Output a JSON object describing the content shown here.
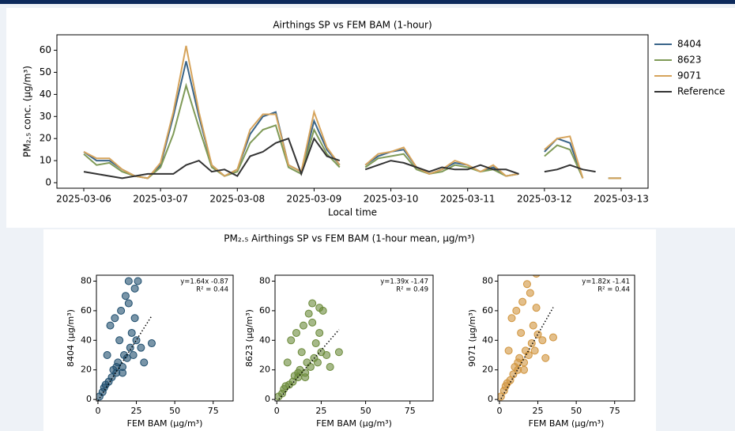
{
  "chart_data": [
    {
      "type": "line",
      "title": "Airthings SP vs FEM BAM (1-hour)",
      "xlabel": "Local time",
      "ylabel": "PM₂.₅ conc. (µg/m³)",
      "x": [
        "2025-03-06T00:00",
        "2025-03-06T04:00",
        "2025-03-06T08:00",
        "2025-03-06T12:00",
        "2025-03-06T16:00",
        "2025-03-06T20:00",
        "2025-03-07T00:00",
        "2025-03-07T04:00",
        "2025-03-07T08:00",
        "2025-03-07T12:00",
        "2025-03-07T16:00",
        "2025-03-07T20:00",
        "2025-03-08T00:00",
        "2025-03-08T04:00",
        "2025-03-08T08:00",
        "2025-03-08T12:00",
        "2025-03-08T16:00",
        "2025-03-08T20:00",
        "2025-03-09T00:00",
        "2025-03-09T04:00",
        "2025-03-09T08:00",
        "2025-03-09T12:00",
        "2025-03-09T16:00",
        "2025-03-09T20:00",
        "2025-03-10T00:00",
        "2025-03-10T04:00",
        "2025-03-10T08:00",
        "2025-03-10T12:00",
        "2025-03-10T16:00",
        "2025-03-10T20:00",
        "2025-03-11T00:00",
        "2025-03-11T04:00",
        "2025-03-11T08:00",
        "2025-03-11T12:00",
        "2025-03-11T16:00",
        "2025-03-11T20:00",
        "2025-03-12T00:00",
        "2025-03-12T04:00",
        "2025-03-12T08:00",
        "2025-03-12T12:00",
        "2025-03-12T16:00",
        "2025-03-12T20:00",
        "2025-03-13T00:00"
      ],
      "series": [
        {
          "name": "8404",
          "color": "#3a6589",
          "values": [
            14,
            10,
            10,
            6,
            3,
            2,
            8,
            30,
            55,
            30,
            8,
            3,
            6,
            22,
            30,
            32,
            8,
            5,
            28,
            15,
            8,
            null,
            8,
            12,
            14,
            15,
            7,
            4,
            6,
            9,
            8,
            5,
            7,
            3,
            4,
            null,
            14,
            20,
            18,
            2,
            null,
            2,
            2
          ]
        },
        {
          "name": "8623",
          "color": "#7f9a57",
          "values": [
            13,
            8,
            9,
            5,
            3,
            2,
            7,
            22,
            44,
            25,
            7,
            3,
            5,
            18,
            24,
            26,
            7,
            4,
            24,
            13,
            7,
            null,
            7,
            11,
            12,
            13,
            6,
            4,
            5,
            8,
            7,
            5,
            6,
            3,
            4,
            null,
            12,
            17,
            15,
            2,
            null,
            2,
            2
          ]
        },
        {
          "name": "9071",
          "color": "#d6a45c",
          "values": [
            14,
            11,
            11,
            6,
            3,
            2,
            9,
            32,
            62,
            32,
            8,
            3,
            6,
            24,
            31,
            31,
            8,
            5,
            32,
            16,
            8,
            null,
            8,
            13,
            14,
            16,
            7,
            4,
            6,
            10,
            8,
            5,
            8,
            3,
            4,
            null,
            15,
            20,
            21,
            2,
            null,
            2,
            2
          ]
        },
        {
          "name": "Reference",
          "color": "#333333",
          "values": [
            5,
            4,
            3,
            2,
            3,
            4,
            4,
            4,
            8,
            10,
            5,
            6,
            3,
            12,
            14,
            18,
            20,
            4,
            20,
            12,
            10,
            null,
            6,
            8,
            10,
            9,
            7,
            5,
            7,
            6,
            6,
            8,
            6,
            6,
            4,
            null,
            5,
            6,
            8,
            6,
            5,
            null,
            null
          ]
        }
      ],
      "xlim": [
        "2025-03-05T15:36",
        "2025-03-13T08:24"
      ],
      "xticks": [
        "2025-03-06",
        "2025-03-07",
        "2025-03-08",
        "2025-03-09",
        "2025-03-10",
        "2025-03-11",
        "2025-03-12",
        "2025-03-13"
      ],
      "ylim": [
        -2.5,
        67
      ],
      "yticks": [
        0,
        10,
        20,
        30,
        40,
        50,
        60
      ],
      "legend": "outside-right"
    },
    {
      "type": "scatter",
      "suptitle": "PM₂.₅ Airthings SP vs FEM BAM (1-hour mean, µg/m³)",
      "xlabel": "FEM BAM (µg/m³)",
      "ylabel": "8404 (µg/m³)",
      "color": "#1f4e6e",
      "x": [
        1,
        3,
        4,
        5,
        6,
        7,
        8,
        9,
        10,
        11,
        12,
        13,
        14,
        15,
        16,
        17,
        18,
        19,
        20,
        21,
        22,
        23,
        24,
        25,
        26,
        28,
        30,
        35,
        12,
        16,
        20,
        24
      ],
      "values": [
        2,
        5,
        8,
        10,
        30,
        12,
        50,
        15,
        20,
        55,
        18,
        25,
        40,
        60,
        22,
        30,
        70,
        28,
        80,
        35,
        45,
        30,
        75,
        40,
        80,
        35,
        25,
        38,
        22,
        18,
        65,
        55
      ],
      "annotation": [
        "y=1.64x -0.87",
        "R² = 0.44"
      ],
      "fit": {
        "slope": 1.64,
        "intercept": -0.87,
        "x_range": [
          0,
          35
        ]
      },
      "xlim": [
        -1,
        88
      ],
      "ylim": [
        -1,
        84
      ],
      "xticks": [
        0,
        25,
        50,
        75
      ],
      "yticks": [
        0,
        20,
        40,
        60,
        80
      ]
    },
    {
      "type": "scatter",
      "xlabel": "FEM BAM (µg/m³)",
      "ylabel": "8623 (µg/m³)",
      "color": "#6b8a3a",
      "x": [
        1,
        3,
        4,
        5,
        6,
        7,
        8,
        9,
        10,
        11,
        12,
        13,
        14,
        15,
        16,
        17,
        18,
        19,
        20,
        21,
        22,
        23,
        24,
        25,
        26,
        28,
        30,
        35,
        12,
        16,
        20,
        24
      ],
      "values": [
        2,
        4,
        7,
        9,
        25,
        10,
        40,
        12,
        16,
        45,
        15,
        20,
        32,
        50,
        18,
        25,
        58,
        22,
        65,
        28,
        38,
        25,
        62,
        32,
        60,
        30,
        22,
        32,
        18,
        15,
        52,
        45
      ],
      "annotation": [
        "y=1.39x -1.47",
        "R² = 0.49"
      ],
      "fit": {
        "slope": 1.39,
        "intercept": -1.47,
        "x_range": [
          0,
          35
        ]
      },
      "xlim": [
        -1,
        88
      ],
      "ylim": [
        -1,
        84
      ],
      "xticks": [
        0,
        25,
        50,
        75
      ],
      "yticks": [
        0,
        20,
        40,
        60,
        80
      ]
    },
    {
      "type": "scatter",
      "xlabel": "FEM BAM (µg/m³)",
      "ylabel": "9071 (µg/m³)",
      "color": "#d1953e",
      "x": [
        1,
        3,
        4,
        5,
        6,
        7,
        8,
        9,
        10,
        11,
        12,
        13,
        14,
        15,
        16,
        17,
        18,
        19,
        20,
        21,
        22,
        23,
        24,
        25,
        26,
        28,
        30,
        35,
        12,
        16,
        20,
        24
      ],
      "values": [
        2,
        6,
        9,
        11,
        33,
        13,
        55,
        17,
        22,
        60,
        20,
        28,
        45,
        66,
        25,
        33,
        78,
        30,
        90,
        38,
        50,
        33,
        85,
        44,
        88,
        40,
        28,
        42,
        25,
        20,
        72,
        62
      ],
      "annotation": [
        "y=1.82x -1.41",
        "R² = 0.44"
      ],
      "fit": {
        "slope": 1.82,
        "intercept": -1.41,
        "x_range": [
          0,
          35
        ]
      },
      "xlim": [
        -1,
        88
      ],
      "ylim": [
        -1,
        84
      ],
      "xticks": [
        0,
        25,
        50,
        75
      ],
      "yticks": [
        0,
        20,
        40,
        60,
        80
      ]
    }
  ]
}
